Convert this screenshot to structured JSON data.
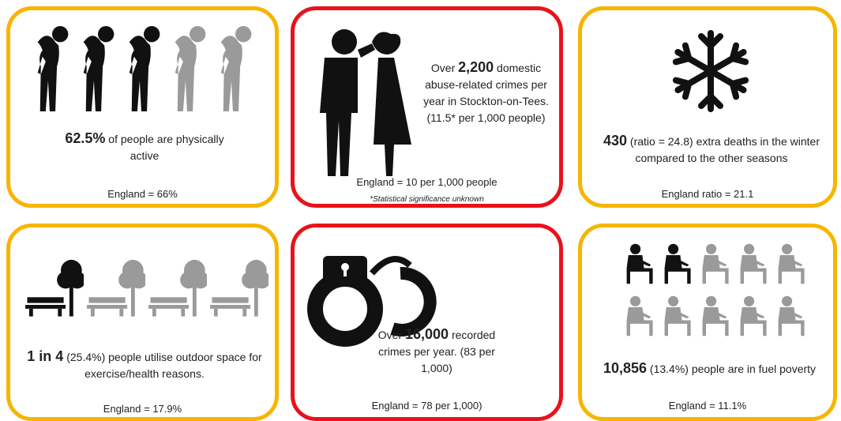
{
  "cards": [
    {
      "highlight": "62.5%",
      "suffix": " of people are physically active",
      "comparison": "England = 66%",
      "border": "#f7b500"
    },
    {
      "prefix": "Over ",
      "highlight": "2,200",
      "suffix": " domestic abuse-related crimes per year in Stockton-on-Tees. (11.5* per 1,000 people)",
      "comparison": "England = 10 per 1,000 people",
      "note": "*Statistical significance unknown",
      "border": "#e8121b"
    },
    {
      "highlight": "430",
      "suffix": " (ratio = 24.8) extra deaths in the winter compared to the other seasons",
      "comparison": "England ratio = 21.1",
      "border": "#f7b500"
    },
    {
      "highlight": "1 in 4",
      "suffix": " (25.4%) people utilise outdoor space for exercise/health reasons.",
      "comparison": "England = 17.9%",
      "border": "#f7b500"
    },
    {
      "prefix": "Over ",
      "highlight": "16,000",
      "suffix": " recorded crimes per year. (83 per 1,000)",
      "comparison": "England = 78 per 1,000)",
      "border": "#e8121b"
    },
    {
      "highlight": "10,856",
      "suffix": " (13.4%) people are in fuel poverty",
      "comparison": "England = 11.1%",
      "border": "#f7b500"
    }
  ]
}
